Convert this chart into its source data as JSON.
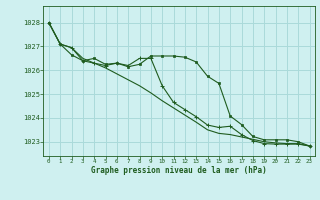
{
  "title": "Graphe pression niveau de la mer (hPa)",
  "bg_color": "#cff0f0",
  "grid_color": "#aadada",
  "line_color": "#1f5c1f",
  "xlim": [
    -0.5,
    23.5
  ],
  "ylim": [
    1022.4,
    1028.7
  ],
  "yticks": [
    1023,
    1024,
    1025,
    1026,
    1027,
    1028
  ],
  "xticks": [
    0,
    1,
    2,
    3,
    4,
    5,
    6,
    7,
    8,
    9,
    10,
    11,
    12,
    13,
    14,
    15,
    16,
    17,
    18,
    19,
    20,
    21,
    22,
    23
  ],
  "line_smooth": [
    1028.0,
    1027.1,
    1026.95,
    1026.5,
    1026.3,
    1026.1,
    1025.85,
    1025.6,
    1025.35,
    1025.05,
    1024.72,
    1024.42,
    1024.12,
    1023.82,
    1023.5,
    1023.35,
    1023.3,
    1023.2,
    1023.1,
    1023.0,
    1022.95,
    1022.92,
    1022.92,
    1022.82
  ],
  "line_markers1": [
    1028.0,
    1027.1,
    1026.95,
    1026.4,
    1026.3,
    1026.2,
    1026.3,
    1026.2,
    1026.5,
    1026.5,
    1025.35,
    1024.65,
    1024.35,
    1024.05,
    1023.7,
    1023.6,
    1023.65,
    1023.3,
    1023.05,
    1022.92,
    1022.9,
    1022.9,
    1022.9,
    1022.82
  ],
  "line_markers2": [
    1028.0,
    1027.1,
    1026.65,
    1026.4,
    1026.5,
    1026.25,
    1026.3,
    1026.15,
    1026.25,
    1026.6,
    1026.6,
    1026.6,
    1026.55,
    1026.35,
    1025.75,
    1025.45,
    1024.08,
    1023.72,
    1023.22,
    1023.08,
    1023.08,
    1023.08,
    1023.0,
    1022.82
  ]
}
